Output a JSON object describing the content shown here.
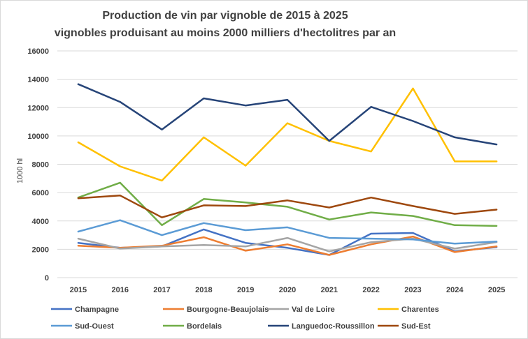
{
  "chart_data": {
    "type": "line",
    "title": "Production de vin par vignoble de 2015 à 2025",
    "subtitle": "vignobles produisant au moins 2000 milliers d'hectolitres par an",
    "xlabel": "",
    "ylabel": "1000 hl",
    "ylim": [
      0,
      16000
    ],
    "yticks": [
      0,
      2000,
      4000,
      6000,
      8000,
      10000,
      12000,
      14000,
      16000
    ],
    "grid": true,
    "legend_position": "bottom",
    "categories": [
      "2015",
      "2016",
      "2017",
      "2018",
      "2019",
      "2020",
      "2021",
      "2022",
      "2023",
      "2024",
      "2025"
    ],
    "series": [
      {
        "name": "Champagne",
        "color": "#4472C4",
        "values": [
          2450,
          2100,
          2200,
          3400,
          2450,
          2100,
          1600,
          3100,
          3150,
          1850,
          2150
        ]
      },
      {
        "name": "Bourgogne-Beaujolais",
        "color": "#ED7D31",
        "values": [
          2250,
          2100,
          2250,
          2850,
          1900,
          2350,
          1600,
          2350,
          2900,
          1800,
          2200
        ]
      },
      {
        "name": "Val de Loire",
        "color": "#A5A5A5",
        "values": [
          2750,
          2050,
          2200,
          2300,
          2200,
          2800,
          1850,
          2500,
          2750,
          2050,
          2500
        ]
      },
      {
        "name": "Charentes",
        "color": "#FFC000",
        "values": [
          9550,
          7850,
          6850,
          9900,
          7900,
          10900,
          9650,
          8900,
          13350,
          8200,
          8200
        ]
      },
      {
        "name": "Sud-Ouest",
        "color": "#5B9BD5",
        "values": [
          3250,
          4050,
          3000,
          3850,
          3350,
          3550,
          2800,
          2750,
          2700,
          2400,
          2550
        ]
      },
      {
        "name": "Bordelais",
        "color": "#70AD47",
        "values": [
          5650,
          6700,
          3700,
          5550,
          5300,
          5000,
          4100,
          4600,
          4350,
          3700,
          3650
        ]
      },
      {
        "name": "Languedoc-Roussillon",
        "color": "#264478",
        "values": [
          13650,
          12400,
          10450,
          12650,
          12150,
          12550,
          9650,
          12050,
          11050,
          9900,
          9400
        ]
      },
      {
        "name": "Sud-Est",
        "color": "#9E480E",
        "values": [
          5600,
          5800,
          4250,
          5100,
          5050,
          5450,
          4950,
          5650,
          5050,
          4500,
          4800
        ]
      }
    ]
  }
}
